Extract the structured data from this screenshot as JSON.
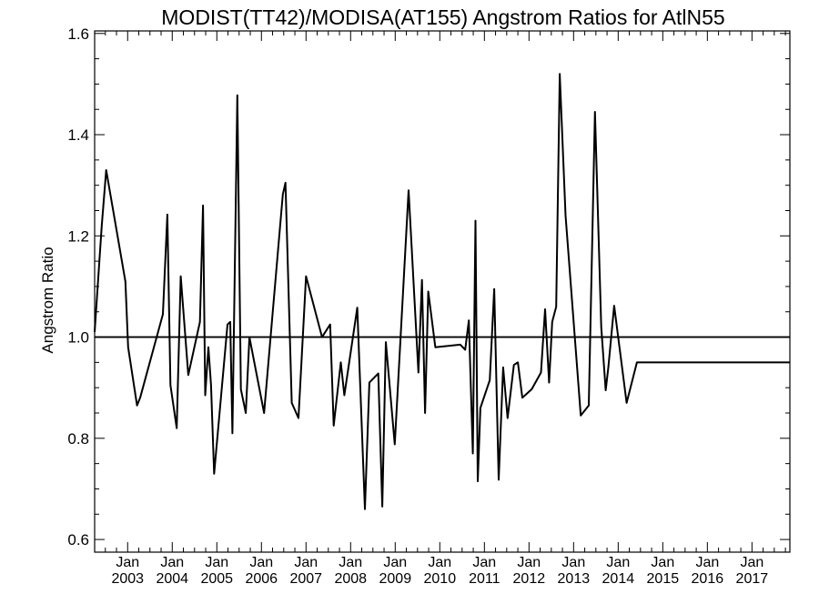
{
  "chart_data": {
    "type": "line",
    "title": "MODIST(TT42)/MODISA(AT155)  Angstrom Ratios for AtlN55",
    "ylabel": "Angstrom Ratio",
    "xlabel": "",
    "ylim": [
      0.575,
      1.605
    ],
    "xlim": [
      2002.26,
      2017.85
    ],
    "yticks": [
      0.6,
      0.8,
      1.0,
      1.2,
      1.4,
      1.6
    ],
    "ytick_labels": [
      "0.6",
      "0.8",
      "1.0",
      "1.2",
      "1.4",
      "1.6"
    ],
    "xticks": [
      {
        "pos": 2003,
        "month": "Jan",
        "year": "2003"
      },
      {
        "pos": 2004,
        "month": "Jan",
        "year": "2004"
      },
      {
        "pos": 2005,
        "month": "Jan",
        "year": "2005"
      },
      {
        "pos": 2006,
        "month": "Jan",
        "year": "2006"
      },
      {
        "pos": 2007,
        "month": "Jan",
        "year": "2007"
      },
      {
        "pos": 2008,
        "month": "Jan",
        "year": "2008"
      },
      {
        "pos": 2009,
        "month": "Jan",
        "year": "2009"
      },
      {
        "pos": 2010,
        "month": "Jan",
        "year": "2010"
      },
      {
        "pos": 2011,
        "month": "Jan",
        "year": "2011"
      },
      {
        "pos": 2012,
        "month": "Jan",
        "year": "2012"
      },
      {
        "pos": 2013,
        "month": "Jan",
        "year": "2013"
      },
      {
        "pos": 2014,
        "month": "Jan",
        "year": "2014"
      },
      {
        "pos": 2015,
        "month": "Jan",
        "year": "2015"
      },
      {
        "pos": 2016,
        "month": "Jan",
        "year": "2016"
      },
      {
        "pos": 2017,
        "month": "Jan",
        "year": "2017"
      }
    ],
    "reference_line": 1.0,
    "grid": false,
    "series": [
      {
        "color": "#000000",
        "x": [
          2002.26,
          2002.42,
          2002.52,
          2002.95,
          2003.01,
          2003.21,
          2003.28,
          2003.79,
          2003.89,
          2003.96,
          2004.1,
          2004.19,
          2004.36,
          2004.62,
          2004.69,
          2004.74,
          2004.81,
          2004.87,
          2004.94,
          2005.24,
          2005.3,
          2005.35,
          2005.46,
          2005.54,
          2005.65,
          2005.73,
          2006.06,
          2006.48,
          2006.54,
          2006.68,
          2006.83,
          2007.0,
          2007.36,
          2007.54,
          2007.62,
          2007.78,
          2007.86,
          2008.15,
          2008.32,
          2008.42,
          2008.62,
          2008.71,
          2008.79,
          2008.99,
          2009.3,
          2009.52,
          2009.6,
          2009.67,
          2009.74,
          2009.9,
          2010.46,
          2010.57,
          2010.65,
          2010.74,
          2010.8,
          2010.85,
          2010.91,
          2011.12,
          2011.22,
          2011.32,
          2011.42,
          2011.52,
          2011.66,
          2011.75,
          2011.85,
          2012.06,
          2012.27,
          2012.36,
          2012.45,
          2012.52,
          2012.61,
          2012.69,
          2012.82,
          2013.16,
          2013.34,
          2013.48,
          2013.62,
          2013.72,
          2013.78,
          2013.91,
          2014.19,
          2014.42,
          2014.49,
          2014.58,
          2014.66,
          2014.99,
          2015.22,
          2015.3,
          2015.38,
          2015.44,
          2015.6,
          2015.86,
          2016.02,
          2016.13,
          2016.24,
          2016.36,
          2016.63,
          2016.78,
          2016.94,
          2017.14,
          2017.3,
          2017.38,
          2017.53,
          2017.67,
          2017.85
        ],
        "y": [
          1.01,
          1.22,
          1.33,
          1.11,
          0.98,
          0.865,
          0.88,
          1.045,
          1.242,
          0.905,
          0.82,
          1.12,
          0.925,
          1.03,
          1.26,
          0.885,
          0.98,
          0.905,
          0.73,
          1.025,
          1.03,
          0.81,
          1.478,
          0.897,
          0.85,
          1.0,
          0.85,
          1.282,
          1.305,
          0.87,
          0.84,
          1.12,
          1.0,
          1.025,
          0.825,
          0.95,
          0.885,
          1.058,
          0.66,
          0.91,
          0.928,
          0.665,
          0.99,
          0.788,
          1.29,
          0.93,
          1.113,
          0.85,
          1.09,
          0.98,
          0.985,
          0.975,
          1.033,
          0.77,
          1.23,
          0.715,
          0.86,
          0.915,
          1.095,
          0.718,
          0.94,
          0.84,
          0.945,
          0.95,
          0.88,
          0.897,
          0.93,
          1.055,
          0.91,
          1.03,
          1.06,
          1.52,
          1.24,
          0.845,
          0.865,
          1.445,
          1.02,
          0.895,
          0.94,
          1.062,
          0.87,
          0.95,
          0.95,
          0.95,
          0.95,
          0.95,
          0.95,
          0.95,
          0.95,
          0.95,
          0.95,
          0.95,
          0.95,
          0.95,
          0.95,
          0.95,
          0.95,
          0.95,
          0.95,
          0.95,
          0.95,
          0.95,
          0.95,
          0.95,
          0.95
        ]
      }
    ]
  }
}
